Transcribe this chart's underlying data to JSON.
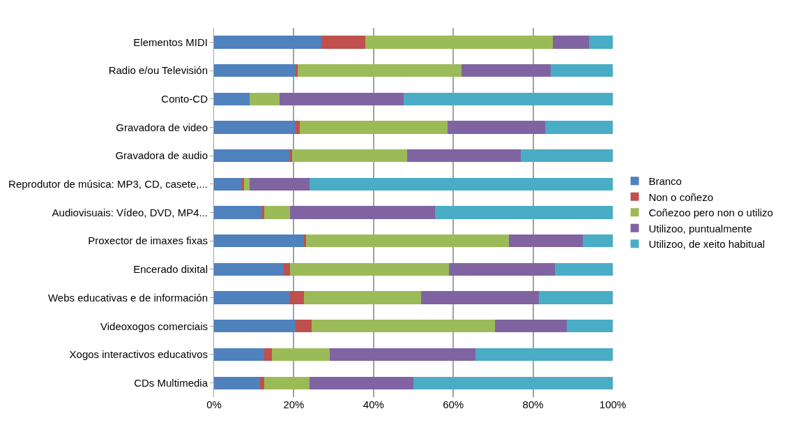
{
  "chart_data": {
    "type": "bar",
    "orientation": "horizontal",
    "stacked": true,
    "categories": [
      "Elementos MIDI",
      "Radio e/ou Televisión",
      "Conto-CD",
      "Gravadora de video",
      "Gravadora de audio",
      "Reprodutor de música: MP3, CD, casete,...",
      "Audiovisuais: Vídeo, DVD, MP4...",
      "Proxector de imaxes fixas",
      "Encerado dixital",
      "Webs educativas e de información",
      "Videoxogos comerciais",
      "Xogos interactivos educativos",
      "CDs Multimedia"
    ],
    "series": [
      {
        "name": "Branco",
        "color": "#4f81bd",
        "values": [
          27,
          20.5,
          9,
          20.5,
          19,
          7,
          12,
          22.5,
          17.5,
          19,
          20.5,
          12.5,
          11.5
        ]
      },
      {
        "name": "Non o coñezo",
        "color": "#c0504d",
        "values": [
          11,
          0.5,
          0,
          1,
          0.5,
          0.5,
          0.5,
          0.5,
          1.5,
          3.5,
          4,
          2,
          1
        ]
      },
      {
        "name": "Coñezoo pero non o utilizo",
        "color": "#9bbb59",
        "values": [
          47,
          41,
          7.5,
          37,
          29,
          1.5,
          6.5,
          51,
          40,
          29.5,
          46,
          14.5,
          11.5
        ]
      },
      {
        "name": "Utilizoo, puntualmente",
        "color": "#8064a2",
        "values": [
          9,
          22.5,
          31,
          24.5,
          28.5,
          15,
          36.5,
          18.5,
          26.5,
          29.5,
          18,
          36.5,
          26
        ]
      },
      {
        "name": "Utilizoo, de xeito habitual",
        "color": "#4bacc6",
        "values": [
          6,
          15.5,
          52.5,
          17,
          23,
          76,
          44.5,
          7.5,
          14.5,
          18.5,
          11.5,
          34.5,
          50
        ]
      }
    ],
    "xlim": [
      0,
      100
    ],
    "xticks": [
      {
        "value": 0,
        "label": "0%"
      },
      {
        "value": 20,
        "label": "20%"
      },
      {
        "value": 40,
        "label": "40%"
      },
      {
        "value": 60,
        "label": "60%"
      },
      {
        "value": 80,
        "label": "80%"
      },
      {
        "value": 100,
        "label": "100%"
      }
    ],
    "grid": "x",
    "legend": "right"
  }
}
